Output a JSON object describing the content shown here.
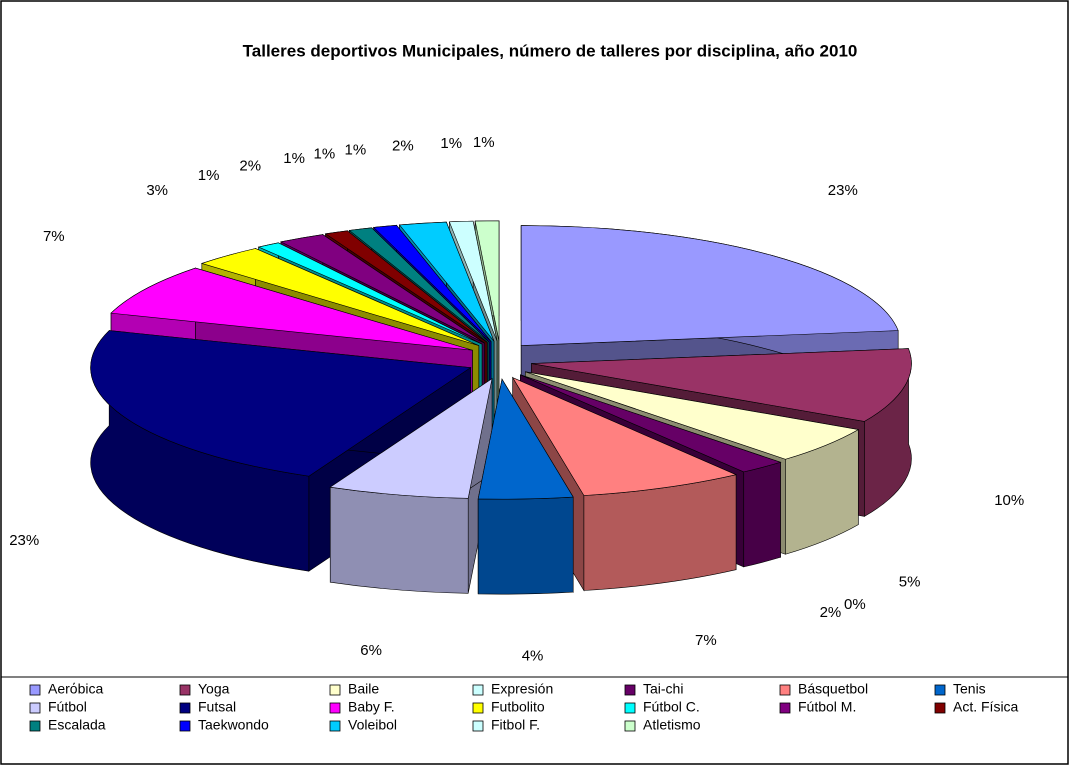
{
  "chart_data": {
    "type": "pie3d",
    "title": "Talleres deportivos Municipales, número de talleres por disciplina, año 2010",
    "categories": [
      "Aerόbica",
      "Yoga",
      "Baile",
      "Expresión",
      "Tai-chi",
      "Básquetbol",
      "Tenis",
      "Fútbol",
      "Futsal",
      "Baby F.",
      "Futbolito",
      "Fútbol C.",
      "Fútbol M.",
      "Act. Física",
      "Escalada",
      "Taekwondo",
      "Voleibol",
      "Fitbol F.",
      "Atletismo"
    ],
    "values": [
      23,
      10,
      5,
      0,
      2,
      7,
      4,
      6,
      23,
      7,
      3,
      1,
      2,
      1,
      1,
      1,
      2,
      1,
      1
    ],
    "value_labels": [
      "23%",
      "10%",
      "5%",
      "0%",
      "2%",
      "7%",
      "4%",
      "6%",
      "23%",
      "7%",
      "3%",
      "1%",
      "2%",
      "1%",
      "1%",
      "1%",
      "2%",
      "1%",
      "1%"
    ],
    "colors": [
      "#9999ff",
      "#993366",
      "#ffffcc",
      "#ccffff",
      "#660066",
      "#ff8080",
      "#0066cc",
      "#ccccff",
      "#000080",
      "#ff00ff",
      "#ffff00",
      "#00ffff",
      "#800080",
      "#800000",
      "#008080",
      "#0000ff",
      "#00ccff",
      "#ccffff",
      "#ccffcc"
    ],
    "legend": "bottom"
  }
}
